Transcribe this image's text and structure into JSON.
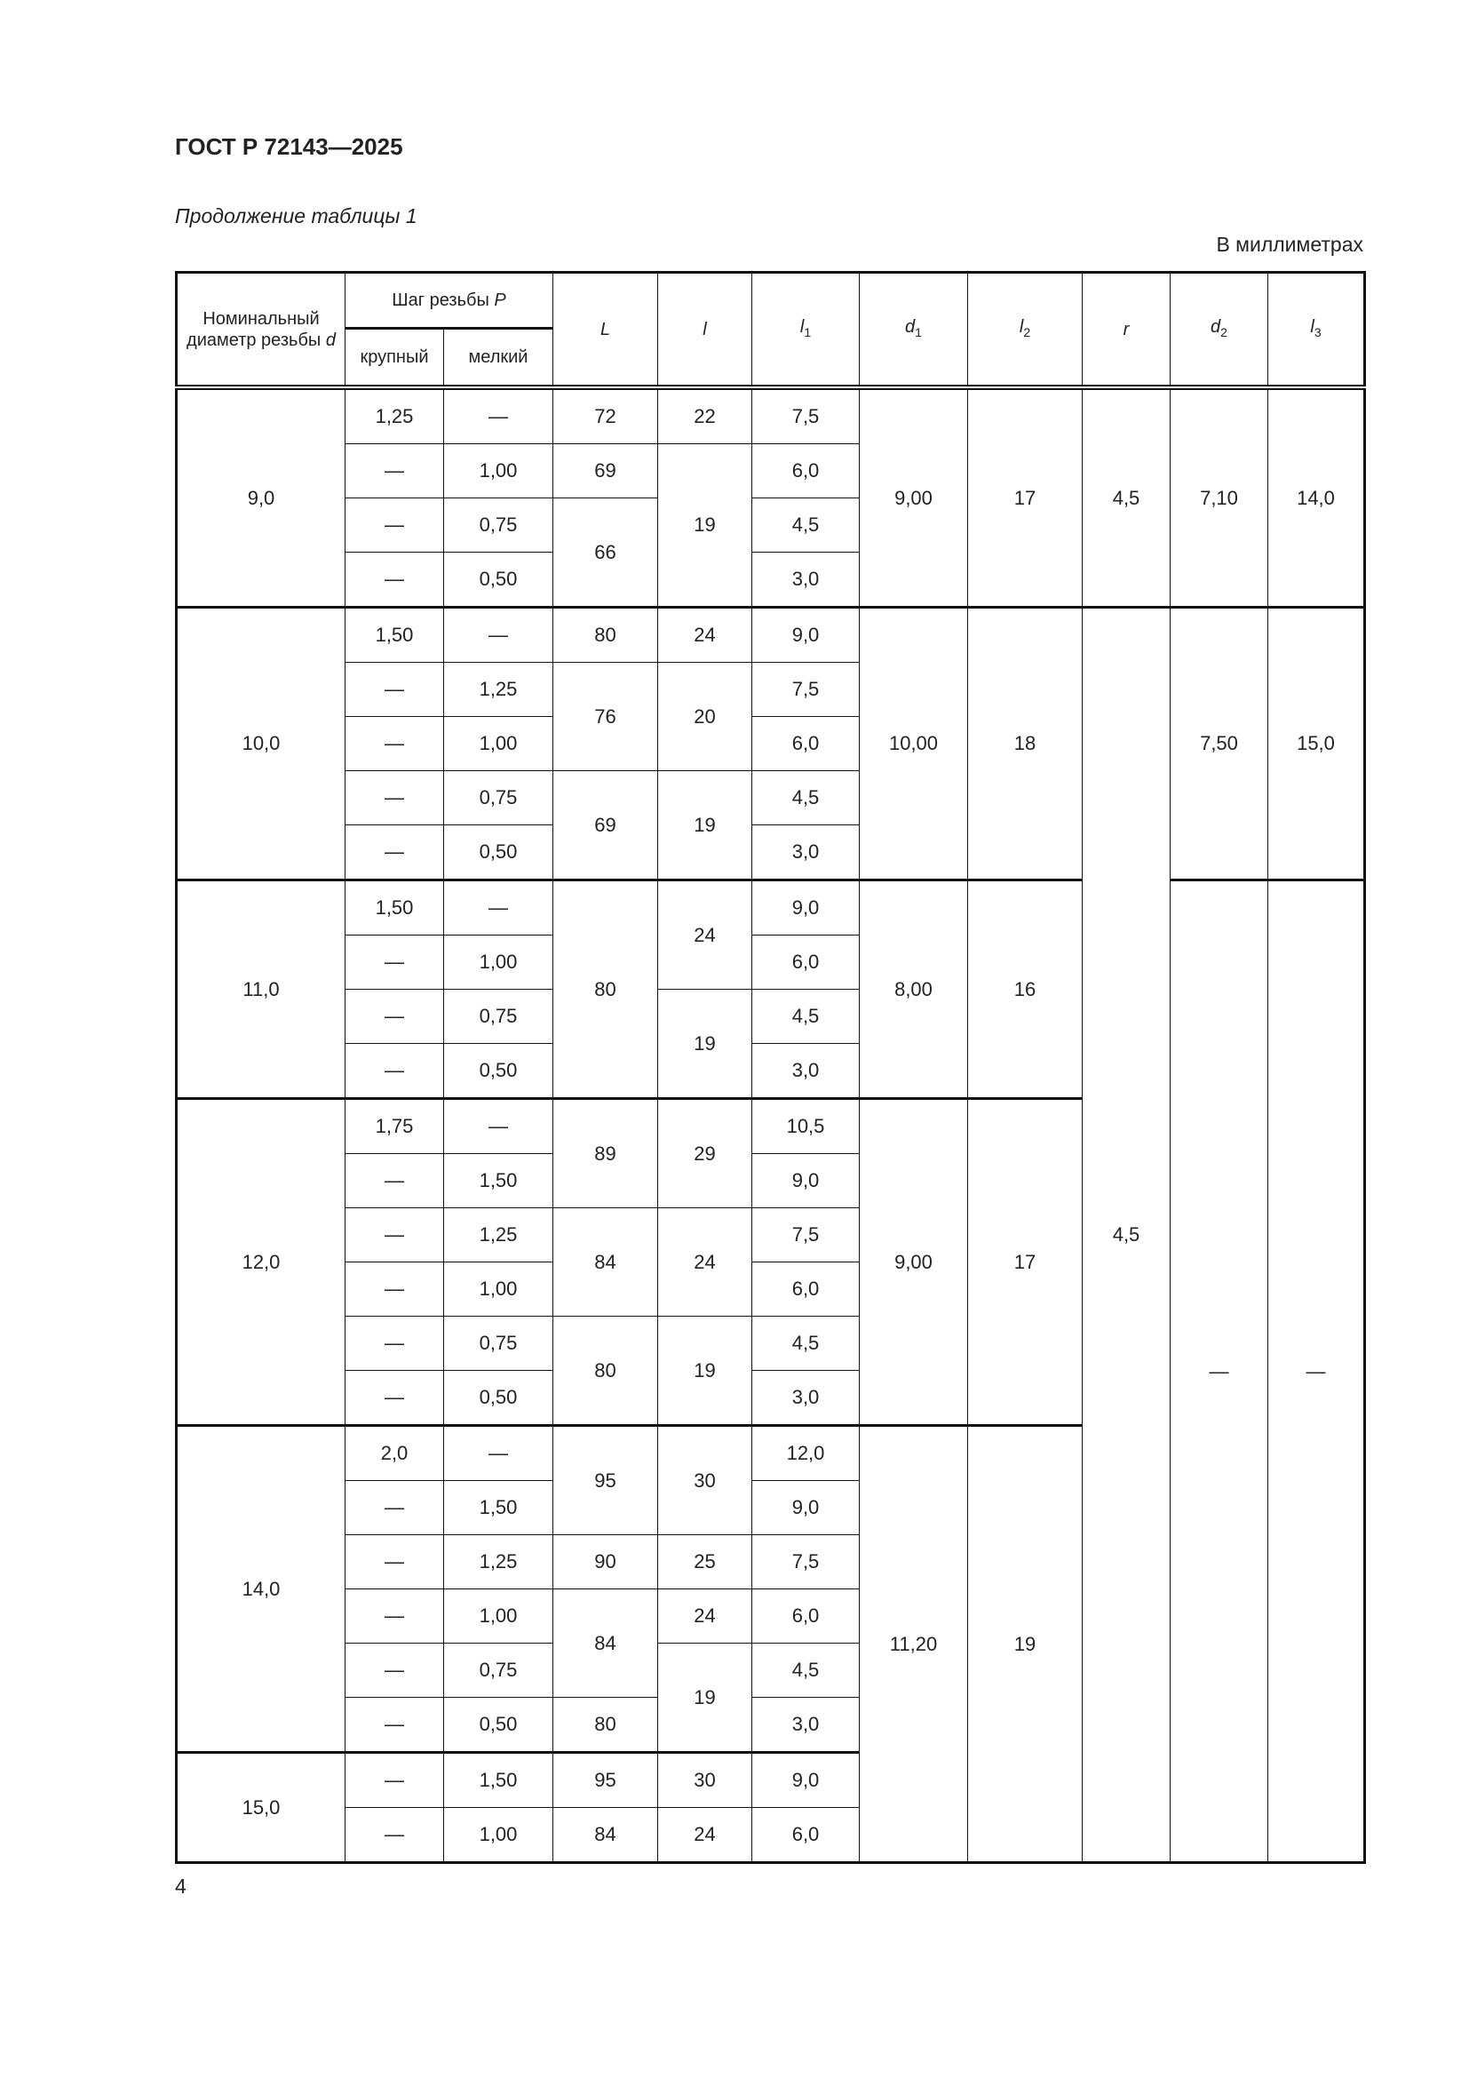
{
  "document": {
    "header": "ГОСТ Р 72143—2025",
    "caption": "Продолжение таблицы 1",
    "units": "В миллиметрах",
    "page_number": "4"
  },
  "table": {
    "headers": {
      "nominal_label": "Номинальный диаметр резьбы",
      "nominal_symbol": "d",
      "pitch_label": "Шаг резьбы",
      "pitch_symbol": "P",
      "coarse": "крупный",
      "fine": "мелкий",
      "cols": [
        {
          "sym": "L",
          "sub": ""
        },
        {
          "sym": "l",
          "sub": ""
        },
        {
          "sym": "l",
          "sub": "1"
        },
        {
          "sym": "d",
          "sub": "1"
        },
        {
          "sym": "l",
          "sub": "2"
        },
        {
          "sym": "r",
          "sub": ""
        },
        {
          "sym": "d",
          "sub": "2"
        },
        {
          "sym": "l",
          "sub": "3"
        }
      ]
    },
    "rows": [
      {
        "g": 1,
        "cells": [
          {
            "v": "9,0",
            "rs": 4
          },
          {
            "v": "1,25"
          },
          {
            "v": "—"
          },
          {
            "v": "72"
          },
          {
            "v": "22"
          },
          {
            "v": "7,5"
          },
          {
            "v": "9,00",
            "rs": 4
          },
          {
            "v": "17",
            "rs": 4
          },
          {
            "v": "4,5",
            "rs": 4
          },
          {
            "v": "7,10",
            "rs": 4
          },
          {
            "v": "14,0",
            "rs": 4
          }
        ]
      },
      {
        "cells": [
          {
            "v": "—"
          },
          {
            "v": "1,00"
          },
          {
            "v": "69"
          },
          {
            "v": "19",
            "rs": 3
          },
          {
            "v": "6,0"
          }
        ]
      },
      {
        "cells": [
          {
            "v": "—"
          },
          {
            "v": "0,75"
          },
          {
            "v": "66",
            "rs": 2
          },
          {
            "v": "4,5"
          }
        ]
      },
      {
        "cells": [
          {
            "v": "—"
          },
          {
            "v": "0,50"
          },
          {
            "v": "3,0"
          }
        ]
      },
      {
        "g": 1,
        "cells": [
          {
            "v": "10,0",
            "rs": 5
          },
          {
            "v": "1,50"
          },
          {
            "v": "—"
          },
          {
            "v": "80"
          },
          {
            "v": "24"
          },
          {
            "v": "9,0"
          },
          {
            "v": "10,00",
            "rs": 5
          },
          {
            "v": "18",
            "rs": 5
          },
          {
            "v": "4,5",
            "rs": 23
          },
          {
            "v": "7,50",
            "rs": 5
          },
          {
            "v": "15,0",
            "rs": 5
          }
        ]
      },
      {
        "cells": [
          {
            "v": "—"
          },
          {
            "v": "1,25"
          },
          {
            "v": "76",
            "rs": 2
          },
          {
            "v": "20",
            "rs": 2
          },
          {
            "v": "7,5"
          }
        ]
      },
      {
        "cells": [
          {
            "v": "—"
          },
          {
            "v": "1,00"
          },
          {
            "v": "6,0"
          }
        ]
      },
      {
        "cells": [
          {
            "v": "—"
          },
          {
            "v": "0,75"
          },
          {
            "v": "69",
            "rs": 2
          },
          {
            "v": "19",
            "rs": 2
          },
          {
            "v": "4,5"
          }
        ]
      },
      {
        "cells": [
          {
            "v": "—"
          },
          {
            "v": "0,50"
          },
          {
            "v": "3,0"
          }
        ]
      },
      {
        "g": 1,
        "cells": [
          {
            "v": "11,0",
            "rs": 4
          },
          {
            "v": "1,50"
          },
          {
            "v": "—"
          },
          {
            "v": "80",
            "rs": 4
          },
          {
            "v": "24",
            "rs": 2
          },
          {
            "v": "9,0"
          },
          {
            "v": "8,00",
            "rs": 4
          },
          {
            "v": "16",
            "rs": 4
          },
          {
            "v": "—",
            "rs": 18
          },
          {
            "v": "—",
            "rs": 18
          }
        ]
      },
      {
        "cells": [
          {
            "v": "—"
          },
          {
            "v": "1,00"
          },
          {
            "v": "6,0"
          }
        ]
      },
      {
        "cells": [
          {
            "v": "—"
          },
          {
            "v": "0,75"
          },
          {
            "v": "19",
            "rs": 2
          },
          {
            "v": "4,5"
          }
        ]
      },
      {
        "cells": [
          {
            "v": "—"
          },
          {
            "v": "0,50"
          },
          {
            "v": "3,0"
          }
        ]
      },
      {
        "g": 1,
        "cells": [
          {
            "v": "12,0",
            "rs": 6
          },
          {
            "v": "1,75"
          },
          {
            "v": "—"
          },
          {
            "v": "89",
            "rs": 2
          },
          {
            "v": "29",
            "rs": 2
          },
          {
            "v": "10,5"
          },
          {
            "v": "9,00",
            "rs": 6
          },
          {
            "v": "17",
            "rs": 6
          }
        ]
      },
      {
        "cells": [
          {
            "v": "—"
          },
          {
            "v": "1,50"
          },
          {
            "v": "9,0"
          }
        ]
      },
      {
        "cells": [
          {
            "v": "—"
          },
          {
            "v": "1,25"
          },
          {
            "v": "84",
            "rs": 2
          },
          {
            "v": "24",
            "rs": 2
          },
          {
            "v": "7,5"
          }
        ]
      },
      {
        "cells": [
          {
            "v": "—"
          },
          {
            "v": "1,00"
          },
          {
            "v": "6,0"
          }
        ]
      },
      {
        "cells": [
          {
            "v": "—"
          },
          {
            "v": "0,75"
          },
          {
            "v": "80",
            "rs": 2
          },
          {
            "v": "19",
            "rs": 2
          },
          {
            "v": "4,5"
          }
        ]
      },
      {
        "cells": [
          {
            "v": "—"
          },
          {
            "v": "0,50"
          },
          {
            "v": "3,0"
          }
        ]
      },
      {
        "g": 1,
        "cells": [
          {
            "v": "14,0",
            "rs": 6
          },
          {
            "v": "2,0"
          },
          {
            "v": "—"
          },
          {
            "v": "95",
            "rs": 2
          },
          {
            "v": "30",
            "rs": 2
          },
          {
            "v": "12,0"
          },
          {
            "v": "11,20",
            "rs": 8
          },
          {
            "v": "19",
            "rs": 8
          }
        ]
      },
      {
        "cells": [
          {
            "v": "—"
          },
          {
            "v": "1,50"
          },
          {
            "v": "9,0"
          }
        ]
      },
      {
        "cells": [
          {
            "v": "—"
          },
          {
            "v": "1,25"
          },
          {
            "v": "90"
          },
          {
            "v": "25"
          },
          {
            "v": "7,5"
          }
        ]
      },
      {
        "cells": [
          {
            "v": "—"
          },
          {
            "v": "1,00"
          },
          {
            "v": "84",
            "rs": 2
          },
          {
            "v": "24"
          },
          {
            "v": "6,0"
          }
        ]
      },
      {
        "cells": [
          {
            "v": "—"
          },
          {
            "v": "0,75"
          },
          {
            "v": "19",
            "rs": 2
          },
          {
            "v": "4,5"
          }
        ]
      },
      {
        "cells": [
          {
            "v": "—"
          },
          {
            "v": "0,50"
          },
          {
            "v": "80"
          },
          {
            "v": "3,0"
          }
        ]
      },
      {
        "g": 1,
        "cells": [
          {
            "v": "15,0",
            "rs": 2
          },
          {
            "v": "—"
          },
          {
            "v": "1,50"
          },
          {
            "v": "95"
          },
          {
            "v": "30"
          },
          {
            "v": "9,0"
          }
        ]
      },
      {
        "cells": [
          {
            "v": "—"
          },
          {
            "v": "1,00"
          },
          {
            "v": "84"
          },
          {
            "v": "24"
          },
          {
            "v": "6,0"
          }
        ]
      }
    ]
  }
}
